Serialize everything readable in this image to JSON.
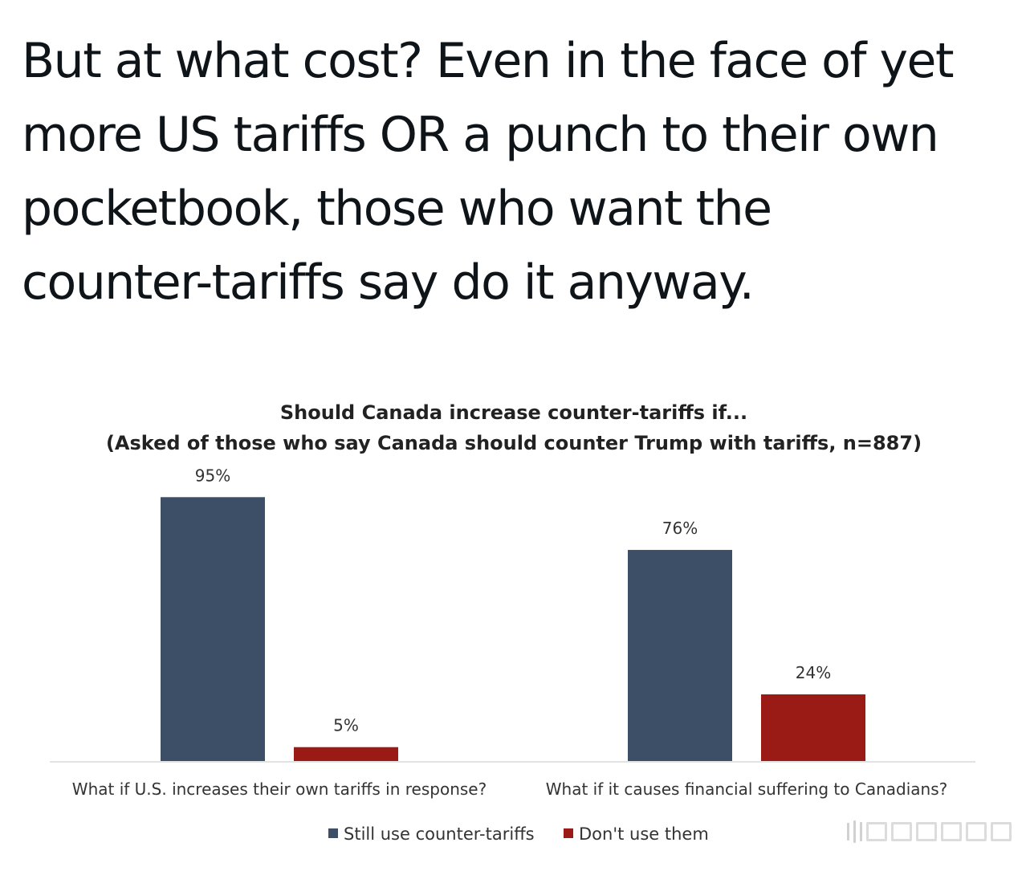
{
  "post": {
    "lines": [
      "But at what cost? Even in the face of yet",
      "more US tariffs OR a punch to their own",
      "pocketbook, those who want the",
      "counter-tariffs say do it anyway."
    ]
  },
  "chart_data": {
    "type": "bar",
    "title": "Should Canada increase counter-tariffs if...",
    "subtitle": "(Asked of those who say Canada should counter Trump with tariffs, n=887)",
    "categories": [
      "What if U.S. increases their own tariffs in response?",
      "What if it causes financial suffering to Canadians?"
    ],
    "series": [
      {
        "name": "Still use counter-tariffs",
        "color": "#3d4f66",
        "values": [
          95,
          76
        ],
        "labels": [
          "95%",
          "76%"
        ]
      },
      {
        "name": "Don't use them",
        "color": "#9a1b15",
        "values": [
          5,
          24
        ],
        "labels": [
          "5%",
          "24%"
        ]
      }
    ],
    "ylim": [
      0,
      100
    ],
    "grid": false,
    "legend_position": "bottom-center",
    "xlabel": "",
    "ylabel": ""
  },
  "colors": {
    "text": "#0f1419",
    "axis": "#e2e2e2",
    "chart_text": "#333333"
  },
  "icons": {
    "watermark": "watermark-icon"
  }
}
